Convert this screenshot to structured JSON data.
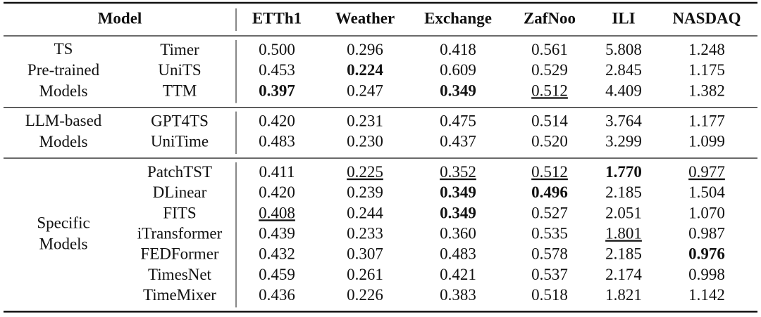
{
  "table": {
    "header": [
      "Model",
      "ETTh1",
      "Weather",
      "Exchange",
      "ZafNoo",
      "ILI",
      "NASDAQ"
    ],
    "groups": [
      {
        "label": [
          "TS",
          "Pre-trained",
          "Models"
        ],
        "rows": [
          {
            "model": "Timer",
            "values": [
              "0.500",
              "0.296",
              "0.418",
              "0.561",
              "5.808",
              "1.248"
            ]
          },
          {
            "model": "UniTS",
            "values": [
              "0.453",
              "0.224",
              "0.609",
              "0.529",
              "2.845",
              "1.175"
            ],
            "bold": [
              1
            ]
          },
          {
            "model": "TTM",
            "values": [
              "0.397",
              "0.247",
              "0.349",
              "0.512",
              "4.409",
              "1.382"
            ],
            "bold": [
              0,
              2
            ],
            "underline": [
              3
            ]
          }
        ]
      },
      {
        "label": [
          "LLM-based",
          "Models"
        ],
        "rows": [
          {
            "model": "GPT4TS",
            "values": [
              "0.420",
              "0.231",
              "0.475",
              "0.514",
              "3.764",
              "1.177"
            ]
          },
          {
            "model": "UniTime",
            "values": [
              "0.483",
              "0.230",
              "0.437",
              "0.520",
              "3.299",
              "1.099"
            ]
          }
        ]
      },
      {
        "label": [
          "Specific",
          "Models"
        ],
        "rows": [
          {
            "model": "PatchTST",
            "values": [
              "0.411",
              "0.225",
              "0.352",
              "0.512",
              "1.770",
              "0.977"
            ],
            "bold": [
              4
            ],
            "underline": [
              1,
              2,
              3,
              5
            ]
          },
          {
            "model": "DLinear",
            "values": [
              "0.420",
              "0.239",
              "0.349",
              "0.496",
              "2.185",
              "1.504"
            ],
            "bold": [
              2,
              3
            ]
          },
          {
            "model": "FITS",
            "values": [
              "0.408",
              "0.244",
              "0.349",
              "0.527",
              "2.051",
              "1.070"
            ],
            "bold": [
              2
            ],
            "underline": [
              0
            ]
          },
          {
            "model": "iTransformer",
            "values": [
              "0.439",
              "0.233",
              "0.360",
              "0.535",
              "1.801",
              "0.987"
            ],
            "underline": [
              4
            ]
          },
          {
            "model": "FEDFormer",
            "values": [
              "0.432",
              "0.307",
              "0.483",
              "0.578",
              "2.185",
              "0.976"
            ],
            "bold": [
              5
            ]
          },
          {
            "model": "TimesNet",
            "values": [
              "0.459",
              "0.261",
              "0.421",
              "0.537",
              "2.174",
              "0.998"
            ]
          },
          {
            "model": "TimeMixer",
            "values": [
              "0.436",
              "0.226",
              "0.383",
              "0.518",
              "1.821",
              "1.142"
            ]
          }
        ]
      }
    ]
  }
}
